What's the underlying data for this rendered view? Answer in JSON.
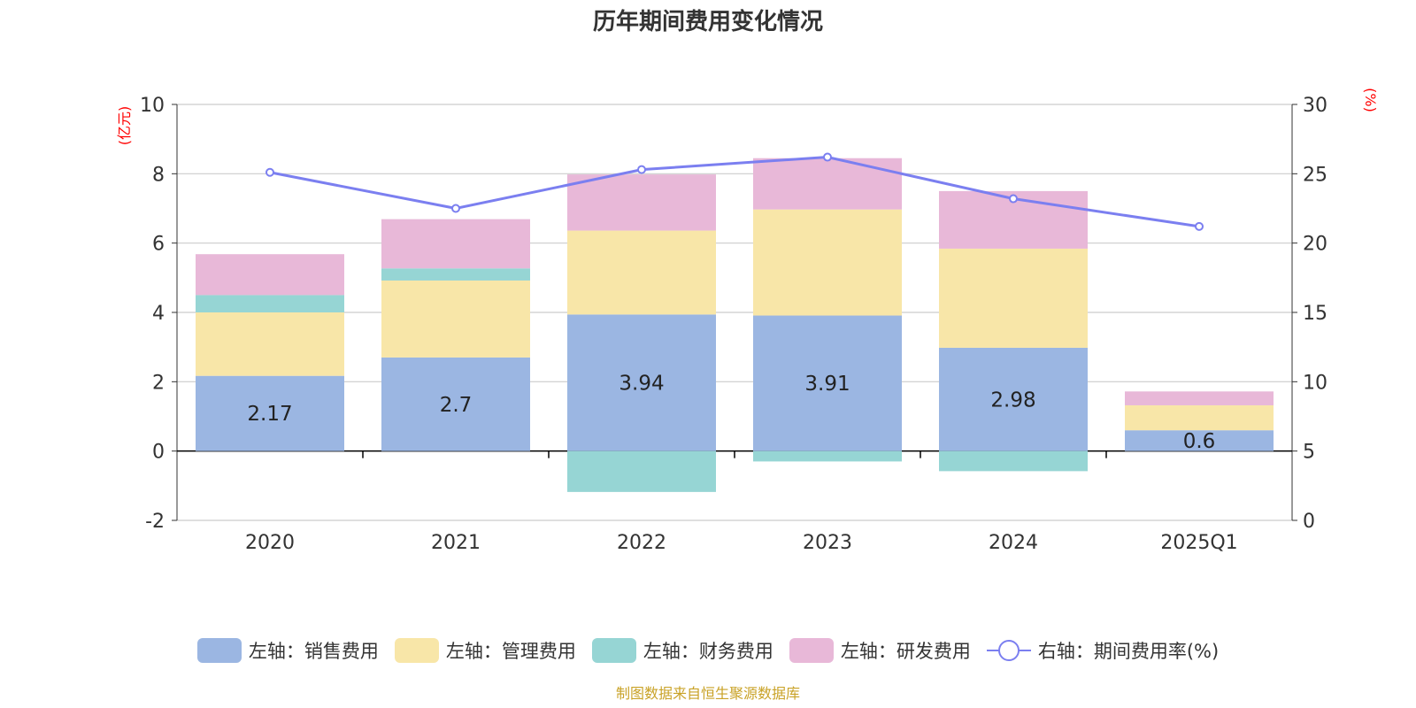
{
  "title": "历年期间费用变化情况",
  "source_note": "制图数据来自恒生聚源数据库",
  "colors": {
    "sales": "#9bb6e2",
    "admin": "#f8e6a8",
    "finance": "#96d5d4",
    "rd": "#e8b8d8",
    "rate_line": "#7b7ff0",
    "axis_unit": "#ff0000",
    "grid": "#cccccc"
  },
  "legend": [
    {
      "label": "左轴：销售费用",
      "color_key": "sales"
    },
    {
      "label": "左轴：管理费用",
      "color_key": "admin"
    },
    {
      "label": "左轴：财务费用",
      "color_key": "finance"
    },
    {
      "label": "左轴：研发费用",
      "color_key": "rd"
    },
    {
      "label": "右轴：期间费用率(%)",
      "color_key": "rate_line"
    }
  ],
  "chart_data": {
    "type": "bar",
    "title": "历年期间费用变化情况",
    "categories": [
      "2020",
      "2021",
      "2022",
      "2023",
      "2024",
      "2025Q1"
    ],
    "left_axis": {
      "unit_label": "(亿元)",
      "ylim": [
        -2,
        10
      ],
      "ticks": [
        -2,
        0,
        2,
        4,
        6,
        8,
        10
      ]
    },
    "right_axis": {
      "unit_label": "(%)",
      "ylim": [
        0,
        30
      ],
      "ticks": [
        0,
        5,
        10,
        15,
        20,
        25,
        30
      ]
    },
    "grid": true,
    "legend_position": "bottom",
    "series": [
      {
        "name": "左轴：销售费用",
        "axis": "left",
        "kind": "stacked-bar",
        "color_key": "sales",
        "values": [
          2.17,
          2.7,
          3.94,
          3.91,
          2.98,
          0.6
        ],
        "show_labels": true
      },
      {
        "name": "左轴：管理费用",
        "axis": "left",
        "kind": "stacked-bar",
        "color_key": "admin",
        "values": [
          1.83,
          2.22,
          2.42,
          3.06,
          2.86,
          0.72
        ]
      },
      {
        "name": "左轴：财务费用",
        "axis": "left",
        "kind": "stacked-bar",
        "color_key": "finance",
        "values": [
          0.5,
          0.35,
          -1.18,
          -0.3,
          -0.58,
          0.0
        ]
      },
      {
        "name": "左轴：研发费用",
        "axis": "left",
        "kind": "stacked-bar",
        "color_key": "rd",
        "values": [
          1.18,
          1.42,
          1.62,
          1.48,
          1.66,
          0.4
        ]
      },
      {
        "name": "右轴：期间费用率(%)",
        "axis": "right",
        "kind": "line",
        "color_key": "rate_line",
        "values": [
          25.1,
          22.5,
          25.3,
          26.2,
          23.2,
          21.2
        ]
      }
    ]
  }
}
